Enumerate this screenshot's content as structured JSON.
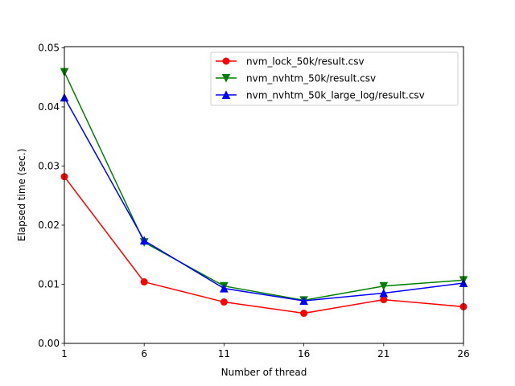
{
  "chart_data": {
    "type": "line",
    "title": "",
    "xlabel": "Number of thread",
    "ylabel": "Elapsed time (sec.)",
    "x": [
      1,
      6,
      11,
      16,
      21,
      26
    ],
    "xticks": [
      "1",
      "6",
      "11",
      "16",
      "21",
      "26"
    ],
    "yticks": [
      "0.00",
      "0.01",
      "0.02",
      "0.03",
      "0.04",
      "0.05"
    ],
    "xlim": [
      1,
      26
    ],
    "ylim": [
      0,
      0.0502
    ],
    "grid": false,
    "legend_position": "top-right",
    "series": [
      {
        "name": "nvm_lock_50k/result.csv",
        "color": "#ff0000",
        "marker": "circle",
        "values": [
          0.0282,
          0.0104,
          0.007,
          0.0051,
          0.0074,
          0.0062
        ]
      },
      {
        "name": "nvm_nvhtm_50k/result.csv",
        "color": "#008000",
        "marker": "triangle-down",
        "values": [
          0.0459,
          0.0171,
          0.0097,
          0.0073,
          0.0097,
          0.0107
        ]
      },
      {
        "name": "nvm_nvhtm_50k_large_log/result.csv",
        "color": "#0000ff",
        "marker": "triangle-up",
        "values": [
          0.0416,
          0.0174,
          0.0093,
          0.0072,
          0.0085,
          0.0102
        ]
      }
    ]
  }
}
